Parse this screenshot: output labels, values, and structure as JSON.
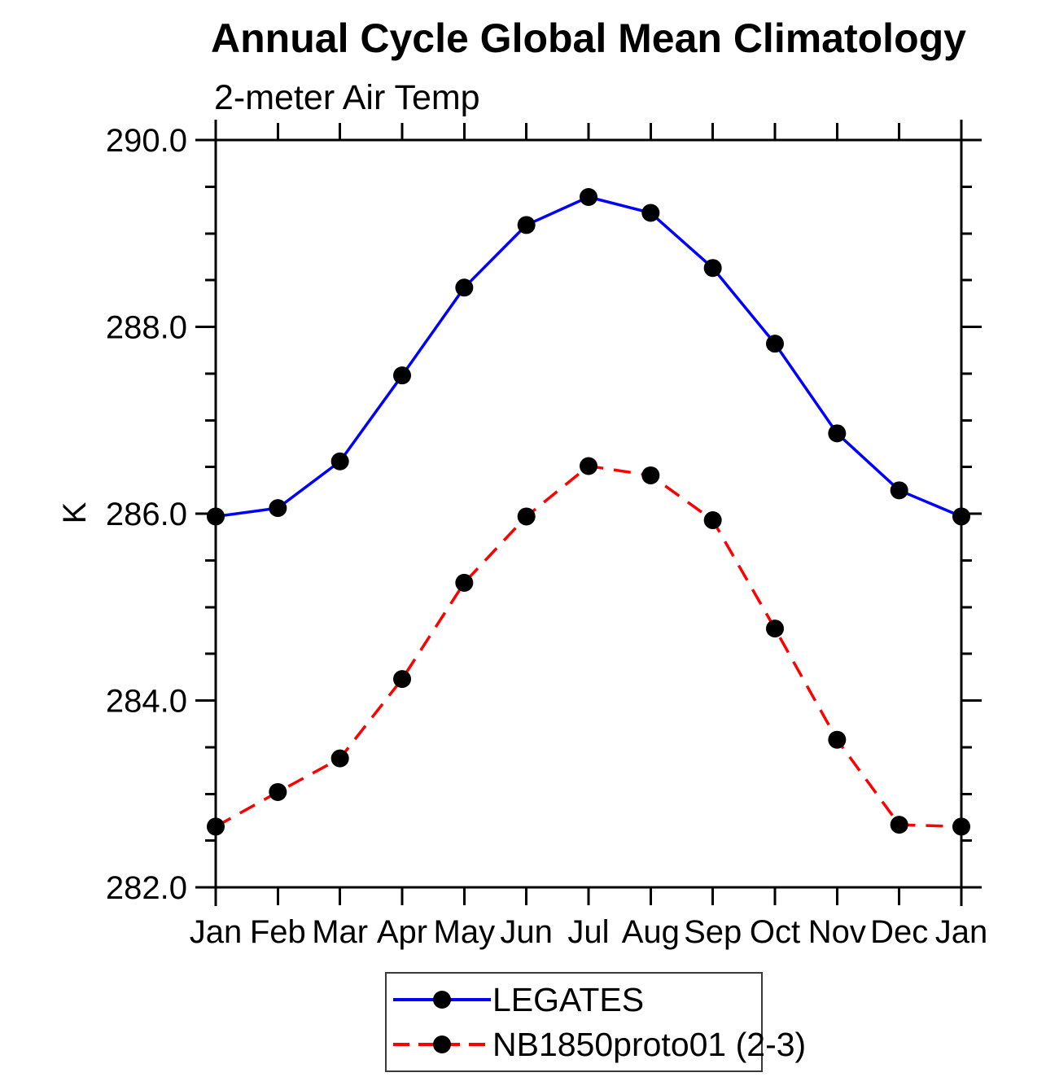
{
  "title": "Annual Cycle Global Mean Climatology",
  "subtitle": "2-meter Air Temp",
  "chart_data": {
    "type": "line",
    "title": "Annual Cycle Global Mean Climatology",
    "subtitle": "2-meter Air Temp",
    "xlabel": "",
    "ylabel": "K",
    "categories": [
      "Jan",
      "Feb",
      "Mar",
      "Apr",
      "May",
      "Jun",
      "Jul",
      "Aug",
      "Sep",
      "Oct",
      "Nov",
      "Dec",
      "Jan"
    ],
    "ylim": [
      282.0,
      290.0
    ],
    "ytick_interval": 2.0,
    "yminor_interval": 0.5,
    "ytick_labels": [
      "290.0",
      "288.0",
      "286.0",
      "284.0",
      "282.0"
    ],
    "grid": false,
    "legend_position": "bottom-center",
    "axis_color": "#000000",
    "marker_color": "#000000",
    "series": [
      {
        "name": "LEGATES",
        "color": "#0000ff",
        "line_style": "solid",
        "marker": "filled-circle",
        "values": [
          285.97,
          286.06,
          286.56,
          287.48,
          288.42,
          289.09,
          289.39,
          289.22,
          288.63,
          287.82,
          286.86,
          286.25,
          285.97
        ]
      },
      {
        "name": "NB1850proto01 (2-3)",
        "color": "#ff0000",
        "line_style": "dashed",
        "marker": "filled-circle",
        "values": [
          282.65,
          283.02,
          283.38,
          284.23,
          285.26,
          285.97,
          286.51,
          286.41,
          285.93,
          284.77,
          283.58,
          282.67,
          282.65
        ]
      }
    ]
  }
}
